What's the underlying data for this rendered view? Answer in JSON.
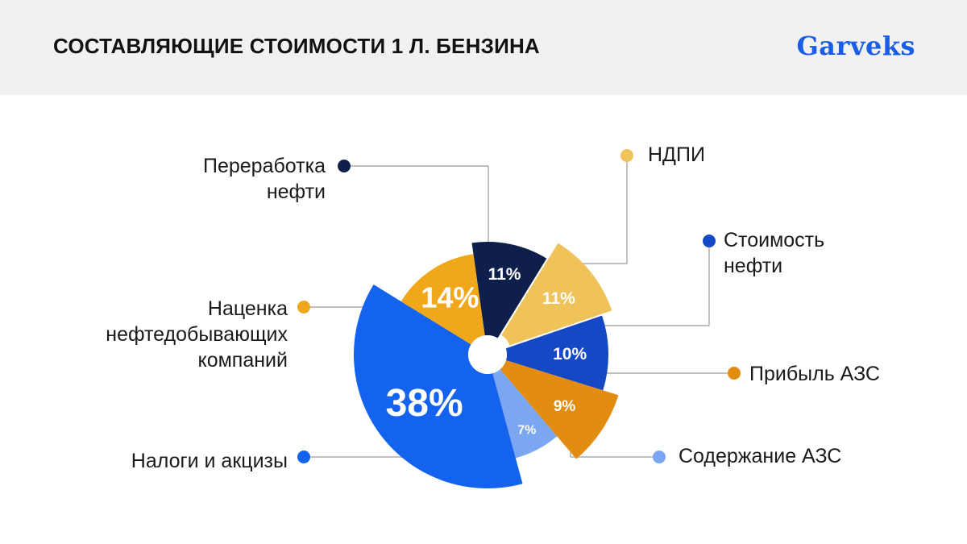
{
  "header": {
    "title": "СОСТАВЛЯЮЩИЕ СТОИМОСТИ 1 Л. БЕНЗИНА",
    "brand": "Garveks"
  },
  "chart_data": {
    "type": "pie",
    "title": "СОСТАВЛЯЮЩИЕ СТОИМОСТИ 1 Л. БЕНЗИНА",
    "legend_placement": "around the pie with leader lines",
    "slices": [
      {
        "name": "Переработка нефти",
        "label_text": "Переработка\nнефти",
        "value": 11,
        "display": "11%",
        "color": "#0d1f4a"
      },
      {
        "name": "НДПИ",
        "label_text": "НДПИ",
        "value": 11,
        "display": "11%",
        "color": "#f0c25a"
      },
      {
        "name": "Стоимость нефти",
        "label_text": "Стоимость\nнефти",
        "value": 10,
        "display": "10%",
        "color": "#1548c4"
      },
      {
        "name": "Прибыль АЗС",
        "label_text": "Прибыль АЗС",
        "value": 9,
        "display": "9%",
        "color": "#e38c12"
      },
      {
        "name": "Содержание АЗС",
        "label_text": "Содержание АЗС",
        "value": 7,
        "display": "7%",
        "color": "#7aa6f2"
      },
      {
        "name": "Налоги и акцизы",
        "label_text": "Налоги и акцизы",
        "value": 38,
        "display": "38%",
        "color": "#1463ee"
      },
      {
        "name": "Наценка нефтедобывающих компаний",
        "label_text": "Наценка\nнефтедобывающих\nкомпаний",
        "value": 14,
        "display": "14%",
        "color": "#f0a81a"
      }
    ]
  }
}
